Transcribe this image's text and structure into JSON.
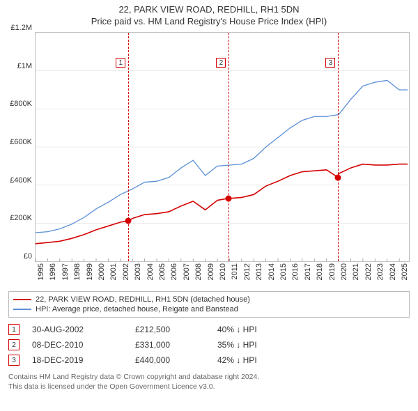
{
  "title_line1": "22, PARK VIEW ROAD, REDHILL, RH1 5DN",
  "title_line2": "Price paid vs. HM Land Registry's House Price Index (HPI)",
  "chart": {
    "type": "line",
    "background_color": "#ffffff",
    "plot_border_color": "#bbbbbb",
    "xlim": [
      1995,
      2025.8
    ],
    "ylim": [
      0,
      1200000
    ],
    "ytick_step": 200000,
    "ytick_labels": [
      "£0",
      "£200K",
      "£400K",
      "£600K",
      "£800K",
      "£1M",
      "£1.2M"
    ],
    "xtick_step": 1,
    "xtick_labels": [
      "1995",
      "1996",
      "1997",
      "1998",
      "1999",
      "2000",
      "2001",
      "2002",
      "2003",
      "2004",
      "2005",
      "2006",
      "2007",
      "2008",
      "2009",
      "2010",
      "2011",
      "2012",
      "2013",
      "2014",
      "2015",
      "2016",
      "2017",
      "2018",
      "2019",
      "2020",
      "2021",
      "2022",
      "2023",
      "2024",
      "2025"
    ],
    "series": [
      {
        "name": "price_paid",
        "label": "22, PARK VIEW ROAD, REDHILL, RH1 5DN (detached house)",
        "color": "#d40000",
        "line_width": 1.6,
        "x": [
          1995,
          1996,
          1997,
          1998,
          1999,
          2000,
          2001,
          2002,
          2002.66,
          2003,
          2004,
          2005,
          2006,
          2007,
          2008,
          2009,
          2010,
          2010.94,
          2011,
          2012,
          2013,
          2014,
          2015,
          2016,
          2017,
          2018,
          2019,
          2019.96,
          2020,
          2021,
          2022,
          2023,
          2024,
          2025,
          2025.7
        ],
        "y": [
          92000,
          98000,
          105000,
          120000,
          140000,
          165000,
          185000,
          205000,
          212500,
          225000,
          245000,
          250000,
          260000,
          290000,
          315000,
          270000,
          320000,
          331000,
          330000,
          335000,
          350000,
          395000,
          420000,
          450000,
          470000,
          475000,
          480000,
          440000,
          460000,
          490000,
          510000,
          505000,
          505000,
          510000,
          510000
        ]
      },
      {
        "name": "hpi",
        "label": "HPI: Average price, detached house, Reigate and Banstead",
        "color": "#5b8fd6",
        "line_width": 1.3,
        "x": [
          1995,
          1996,
          1997,
          1998,
          1999,
          2000,
          2001,
          2002,
          2003,
          2004,
          2005,
          2006,
          2007,
          2008,
          2009,
          2010,
          2011,
          2012,
          2013,
          2014,
          2015,
          2016,
          2017,
          2018,
          2019,
          2020,
          2021,
          2022,
          2023,
          2024,
          2025,
          2025.7
        ],
        "y": [
          150000,
          155000,
          170000,
          195000,
          230000,
          275000,
          310000,
          350000,
          380000,
          415000,
          420000,
          440000,
          490000,
          530000,
          450000,
          500000,
          505000,
          510000,
          540000,
          600000,
          650000,
          700000,
          740000,
          760000,
          760000,
          770000,
          850000,
          920000,
          940000,
          950000,
          900000,
          900000
        ]
      }
    ],
    "event_markers": [
      {
        "n": "1",
        "x": 2002.66,
        "y": 212500,
        "line_color": "#d40000",
        "point_color": "#d40000"
      },
      {
        "n": "2",
        "x": 2010.94,
        "y": 331000,
        "line_color": "#d40000",
        "point_color": "#d40000"
      },
      {
        "n": "3",
        "x": 2019.96,
        "y": 440000,
        "line_color": "#d40000",
        "point_color": "#d40000"
      }
    ],
    "marker_label_border": "#d40000",
    "label_fontsize": 11
  },
  "legend": {
    "items": [
      {
        "swatch_color": "#d40000",
        "text": "22, PARK VIEW ROAD, REDHILL, RH1 5DN (detached house)"
      },
      {
        "swatch_color": "#5b8fd6",
        "text": "HPI: Average price, detached house, Reigate and Banstead"
      }
    ]
  },
  "events_table": {
    "rows": [
      {
        "n": "1",
        "date": "30-AUG-2002",
        "price": "£212,500",
        "diff": "40% ↓ HPI",
        "border_color": "#d40000"
      },
      {
        "n": "2",
        "date": "08-DEC-2010",
        "price": "£331,000",
        "diff": "35% ↓ HPI",
        "border_color": "#d40000"
      },
      {
        "n": "3",
        "date": "18-DEC-2019",
        "price": "£440,000",
        "diff": "42% ↓ HPI",
        "border_color": "#d40000"
      }
    ]
  },
  "footer_line1": "Contains HM Land Registry data © Crown copyright and database right 2024.",
  "footer_line2": "This data is licensed under the Open Government Licence v3.0."
}
